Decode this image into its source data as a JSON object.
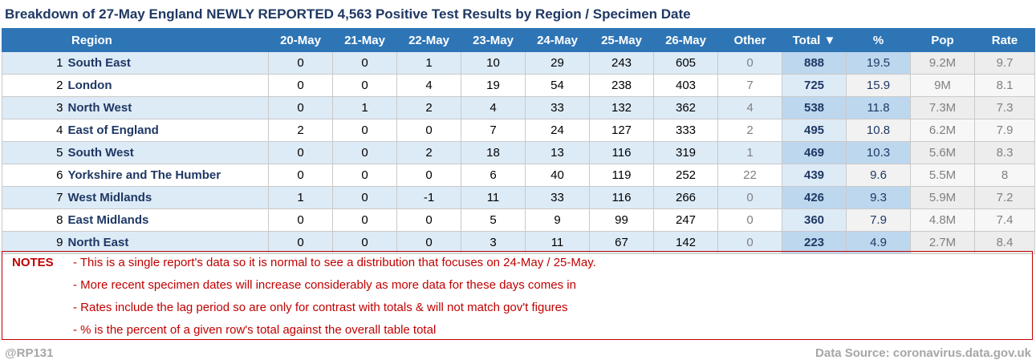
{
  "title": "Breakdown of 27-May England NEWLY REPORTED 4,563 Positive Test Results by Region / Specimen Date",
  "chart_data": {
    "type": "table",
    "columns": [
      "Region",
      "20-May",
      "21-May",
      "22-May",
      "23-May",
      "24-May",
      "25-May",
      "26-May",
      "Other",
      "Total ▼",
      "%",
      "Pop",
      "Rate"
    ],
    "rows": [
      {
        "rank": "1",
        "region": "South East",
        "values": [
          "0",
          "0",
          "1",
          "10",
          "29",
          "243",
          "605"
        ],
        "other": "0",
        "total": "888",
        "pct": "19.5",
        "pop": "9.2M",
        "rate": "9.7"
      },
      {
        "rank": "2",
        "region": "London",
        "values": [
          "0",
          "0",
          "4",
          "19",
          "54",
          "238",
          "403"
        ],
        "other": "7",
        "total": "725",
        "pct": "15.9",
        "pop": "9M",
        "rate": "8.1"
      },
      {
        "rank": "3",
        "region": "North West",
        "values": [
          "0",
          "1",
          "2",
          "4",
          "33",
          "132",
          "362"
        ],
        "other": "4",
        "total": "538",
        "pct": "11.8",
        "pop": "7.3M",
        "rate": "7.3"
      },
      {
        "rank": "4",
        "region": "East of England",
        "values": [
          "2",
          "0",
          "0",
          "7",
          "24",
          "127",
          "333"
        ],
        "other": "2",
        "total": "495",
        "pct": "10.8",
        "pop": "6.2M",
        "rate": "7.9"
      },
      {
        "rank": "5",
        "region": "South West",
        "values": [
          "0",
          "0",
          "2",
          "18",
          "13",
          "116",
          "319"
        ],
        "other": "1",
        "total": "469",
        "pct": "10.3",
        "pop": "5.6M",
        "rate": "8.3"
      },
      {
        "rank": "6",
        "region": "Yorkshire and The Humber",
        "values": [
          "0",
          "0",
          "0",
          "6",
          "40",
          "119",
          "252"
        ],
        "other": "22",
        "total": "439",
        "pct": "9.6",
        "pop": "5.5M",
        "rate": "8"
      },
      {
        "rank": "7",
        "region": "West Midlands",
        "values": [
          "1",
          "0",
          "-1",
          "11",
          "33",
          "116",
          "266"
        ],
        "other": "0",
        "total": "426",
        "pct": "9.3",
        "pop": "5.9M",
        "rate": "7.2"
      },
      {
        "rank": "8",
        "region": "East Midlands",
        "values": [
          "0",
          "0",
          "0",
          "5",
          "9",
          "99",
          "247"
        ],
        "other": "0",
        "total": "360",
        "pct": "7.9",
        "pop": "4.8M",
        "rate": "7.4"
      },
      {
        "rank": "9",
        "region": "North East",
        "values": [
          "0",
          "0",
          "0",
          "3",
          "11",
          "67",
          "142"
        ],
        "other": "0",
        "total": "223",
        "pct": "4.9",
        "pop": "2.7M",
        "rate": "8.4"
      }
    ]
  },
  "notes": {
    "label": "NOTES",
    "lines": [
      "- This is a single report's data so it is normal to see a distribution that focuses on 24-May / 25-May.",
      "- More recent specimen dates will increase considerably as more data for these days comes in",
      "- Rates include the lag period so are only for contrast with totals & will not match gov't figures",
      "- % is the percent of a given row's total against the overall table total"
    ]
  },
  "footer": {
    "handle": "@RP131",
    "source": "Data Source: coronavirus.data.gov.uk"
  }
}
